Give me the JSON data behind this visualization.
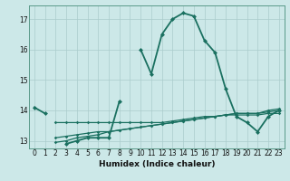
{
  "xlabel": "Humidex (Indice chaleur)",
  "bg_color": "#cce8e8",
  "grid_color": "#aacccc",
  "line_color": "#1a7060",
  "x_values": [
    0,
    1,
    2,
    3,
    4,
    5,
    6,
    7,
    8,
    9,
    10,
    11,
    12,
    13,
    14,
    15,
    16,
    17,
    18,
    19,
    20,
    21,
    22,
    23
  ],
  "main_y": [
    14.1,
    13.9,
    null,
    12.9,
    13.0,
    13.1,
    13.1,
    13.1,
    14.3,
    null,
    16.0,
    15.2,
    16.5,
    17.0,
    17.2,
    17.1,
    16.3,
    15.9,
    14.7,
    13.8,
    13.6,
    13.3,
    13.8,
    14.0
  ],
  "flat_y": [
    null,
    null,
    13.6,
    13.6,
    13.6,
    13.6,
    13.6,
    13.6,
    13.6,
    13.6,
    13.6,
    13.6,
    13.6,
    13.65,
    13.7,
    13.75,
    13.8,
    13.8,
    13.85,
    13.85,
    13.85,
    13.85,
    13.9,
    13.9
  ],
  "slope1_y": [
    null,
    null,
    13.1,
    13.15,
    13.2,
    13.25,
    13.3,
    13.3,
    13.35,
    13.4,
    13.45,
    13.5,
    13.55,
    13.6,
    13.65,
    13.7,
    13.75,
    13.8,
    13.85,
    13.9,
    13.9,
    13.9,
    14.0,
    14.05
  ],
  "slope2_y": [
    null,
    null,
    12.95,
    13.0,
    13.1,
    13.15,
    13.2,
    13.3,
    13.35,
    13.4,
    13.45,
    13.5,
    13.55,
    13.6,
    13.65,
    13.7,
    13.75,
    13.8,
    13.85,
    13.9,
    13.9,
    13.9,
    13.95,
    14.0
  ],
  "ylim": [
    12.75,
    17.45
  ],
  "xlim": [
    -0.5,
    23.5
  ],
  "yticks": [
    13,
    14,
    15,
    16,
    17
  ],
  "xticks": [
    0,
    1,
    2,
    3,
    4,
    5,
    6,
    7,
    8,
    9,
    10,
    11,
    12,
    13,
    14,
    15,
    16,
    17,
    18,
    19,
    20,
    21,
    22,
    23
  ]
}
